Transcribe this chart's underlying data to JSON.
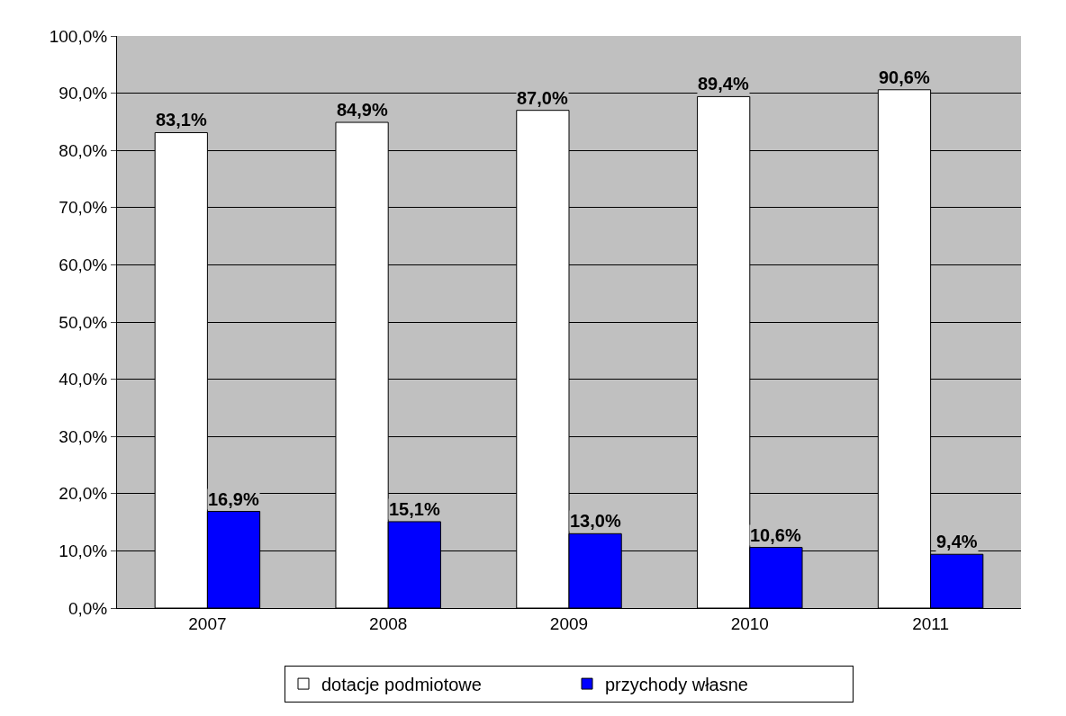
{
  "chart_data": {
    "type": "bar",
    "categories": [
      "2007",
      "2008",
      "2009",
      "2010",
      "2011"
    ],
    "series": [
      {
        "name": "dotacje podmiotowe",
        "color": "#ffffff",
        "values": [
          83.1,
          84.9,
          87.0,
          89.4,
          90.6
        ],
        "value_labels": [
          "83,1%",
          "84,9%",
          "87,0%",
          "89,4%",
          "90,6%"
        ]
      },
      {
        "name": "przychody własne",
        "color": "#0000ff",
        "values": [
          16.9,
          15.1,
          13.0,
          10.6,
          9.4
        ],
        "value_labels": [
          "16,9%",
          "15,1%",
          "13,0%",
          "10,6%",
          "9,4%"
        ]
      }
    ],
    "ylim": [
      0,
      100
    ],
    "yticks": [
      {
        "value": 0,
        "label": "0,0%"
      },
      {
        "value": 10,
        "label": "10,0%"
      },
      {
        "value": 20,
        "label": "20,0%"
      },
      {
        "value": 30,
        "label": "30,0%"
      },
      {
        "value": 40,
        "label": "40,0%"
      },
      {
        "value": 50,
        "label": "50,0%"
      },
      {
        "value": 60,
        "label": "60,0%"
      },
      {
        "value": 70,
        "label": "70,0%"
      },
      {
        "value": 80,
        "label": "80,0%"
      },
      {
        "value": 90,
        "label": "90,0%"
      },
      {
        "value": 100,
        "label": "100,0%"
      }
    ],
    "grid": "y",
    "legend": "bottom"
  }
}
